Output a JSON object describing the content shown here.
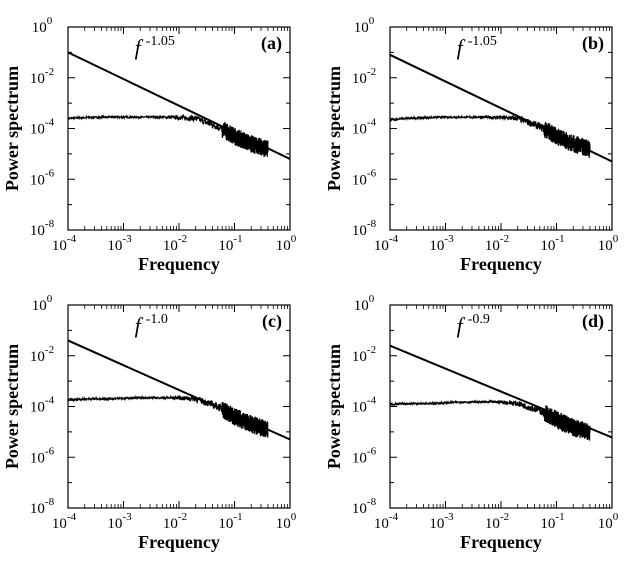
{
  "chart_data": [
    {
      "type": "line",
      "panel_label": "(a)",
      "xlabel": "Frequency",
      "ylabel": "Power spectrum",
      "xscale": "log",
      "yscale": "log",
      "xlim": [
        0.0001,
        1
      ],
      "ylim": [
        1e-08,
        1
      ],
      "xticks": [
        {
          "base": "10",
          "exp": "-4"
        },
        {
          "base": "10",
          "exp": "-3"
        },
        {
          "base": "10",
          "exp": "-2"
        },
        {
          "base": "10",
          "exp": "-1"
        },
        {
          "base": "10",
          "exp": "0"
        }
      ],
      "yticks": [
        {
          "base": "10",
          "exp": "-8"
        },
        {
          "base": "10",
          "exp": "-6"
        },
        {
          "base": "10",
          "exp": "-4"
        },
        {
          "base": "10",
          "exp": "-2"
        },
        {
          "base": "10",
          "exp": "0"
        }
      ],
      "fit_label": {
        "base": "f",
        "exp": "-1.05"
      },
      "fit_line": {
        "x": [
          0.0001,
          1
        ],
        "y": [
          0.1,
          6.3e-06
        ]
      },
      "spectrum": {
        "x": [
          0.0001,
          0.0002,
          0.0005,
          0.001,
          0.002,
          0.005,
          0.01,
          0.02,
          0.05,
          0.1,
          0.2,
          0.4
        ],
        "y": [
          0.00025,
          0.00027,
          0.00028,
          0.00028,
          0.00028,
          0.00028,
          0.00027,
          0.00025,
          0.00012,
          5e-05,
          2.5e-05,
          1.5e-05
        ]
      }
    },
    {
      "type": "line",
      "panel_label": "(b)",
      "xlabel": "Frequency",
      "ylabel": "Power spectrum",
      "xscale": "log",
      "yscale": "log",
      "xlim": [
        0.0001,
        1
      ],
      "ylim": [
        1e-08,
        1
      ],
      "xticks": [
        {
          "base": "10",
          "exp": "-4"
        },
        {
          "base": "10",
          "exp": "-3"
        },
        {
          "base": "10",
          "exp": "-2"
        },
        {
          "base": "10",
          "exp": "-1"
        },
        {
          "base": "10",
          "exp": "0"
        }
      ],
      "yticks": [
        {
          "base": "10",
          "exp": "-8"
        },
        {
          "base": "10",
          "exp": "-6"
        },
        {
          "base": "10",
          "exp": "-4"
        },
        {
          "base": "10",
          "exp": "-2"
        },
        {
          "base": "10",
          "exp": "0"
        }
      ],
      "fit_label": {
        "base": "f",
        "exp": "-1.05"
      },
      "fit_line": {
        "x": [
          0.0001,
          1
        ],
        "y": [
          0.08,
          5e-06
        ]
      },
      "spectrum": {
        "x": [
          0.0001,
          0.0002,
          0.0005,
          0.001,
          0.002,
          0.005,
          0.01,
          0.02,
          0.05,
          0.1,
          0.2,
          0.4
        ],
        "y": [
          0.00022,
          0.00025,
          0.00027,
          0.00028,
          0.00028,
          0.00028,
          0.00027,
          0.00025,
          0.00012,
          5e-05,
          2.5e-05,
          1.5e-05
        ]
      }
    },
    {
      "type": "line",
      "panel_label": "(c)",
      "xlabel": "Frequency",
      "ylabel": "Power spectrum",
      "xscale": "log",
      "yscale": "log",
      "xlim": [
        0.0001,
        1
      ],
      "ylim": [
        1e-08,
        1
      ],
      "xticks": [
        {
          "base": "10",
          "exp": "-4"
        },
        {
          "base": "10",
          "exp": "-3"
        },
        {
          "base": "10",
          "exp": "-2"
        },
        {
          "base": "10",
          "exp": "-1"
        },
        {
          "base": "10",
          "exp": "0"
        }
      ],
      "yticks": [
        {
          "base": "10",
          "exp": "-8"
        },
        {
          "base": "10",
          "exp": "-6"
        },
        {
          "base": "10",
          "exp": "-4"
        },
        {
          "base": "10",
          "exp": "-2"
        },
        {
          "base": "10",
          "exp": "0"
        }
      ],
      "fit_label": {
        "base": "f",
        "exp": "-1.0"
      },
      "fit_line": {
        "x": [
          0.0001,
          1
        ],
        "y": [
          0.04,
          5e-06
        ]
      },
      "spectrum": {
        "x": [
          0.0001,
          0.0002,
          0.0005,
          0.001,
          0.002,
          0.005,
          0.01,
          0.02,
          0.05,
          0.1,
          0.2,
          0.4
        ],
        "y": [
          0.00018,
          0.0002,
          0.0002,
          0.00021,
          0.00022,
          0.00022,
          0.00022,
          0.0002,
          0.0001,
          4e-05,
          2e-05,
          1.2e-05
        ]
      }
    },
    {
      "type": "line",
      "panel_label": "(d)",
      "xlabel": "Frequency",
      "ylabel": "Power spectrum",
      "xscale": "log",
      "yscale": "log",
      "xlim": [
        0.0001,
        1
      ],
      "ylim": [
        1e-08,
        1
      ],
      "xticks": [
        {
          "base": "10",
          "exp": "-4"
        },
        {
          "base": "10",
          "exp": "-3"
        },
        {
          "base": "10",
          "exp": "-2"
        },
        {
          "base": "10",
          "exp": "-1"
        },
        {
          "base": "10",
          "exp": "0"
        }
      ],
      "yticks": [
        {
          "base": "10",
          "exp": "-8"
        },
        {
          "base": "10",
          "exp": "-6"
        },
        {
          "base": "10",
          "exp": "-4"
        },
        {
          "base": "10",
          "exp": "-2"
        },
        {
          "base": "10",
          "exp": "0"
        }
      ],
      "fit_label": {
        "base": "f",
        "exp": "-0.9"
      },
      "fit_line": {
        "x": [
          0.0001,
          1
        ],
        "y": [
          0.025,
          6e-06
        ]
      },
      "spectrum": {
        "x": [
          0.0001,
          0.0002,
          0.0005,
          0.001,
          0.002,
          0.005,
          0.01,
          0.02,
          0.05,
          0.1,
          0.2,
          0.4
        ],
        "y": [
          0.00012,
          0.00013,
          0.00013,
          0.00014,
          0.00015,
          0.00015,
          0.00015,
          0.00013,
          7e-05,
          3e-05,
          1.5e-05,
          1e-05
        ]
      }
    }
  ]
}
